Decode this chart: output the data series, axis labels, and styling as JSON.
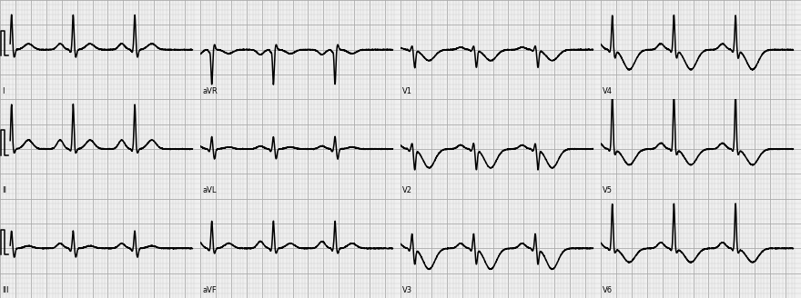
{
  "bg_color": "#f0f0f0",
  "grid_minor_color": "#cccccc",
  "grid_major_color": "#aaaaaa",
  "ecg_color": "#000000",
  "ecg_linewidth": 1.1,
  "fig_width": 8.8,
  "fig_height": 3.28,
  "dpi": 100,
  "rows": 3,
  "cols": 4,
  "leads": [
    [
      "I",
      "aVR",
      "V1",
      "V4"
    ],
    [
      "II",
      "aVL",
      "V2",
      "V5"
    ],
    [
      "III",
      "aVF",
      "V3",
      "V6"
    ]
  ],
  "label_fontsize": 6,
  "heart_rate": 75,
  "fs": 500,
  "duration_per_lead": 2.5
}
